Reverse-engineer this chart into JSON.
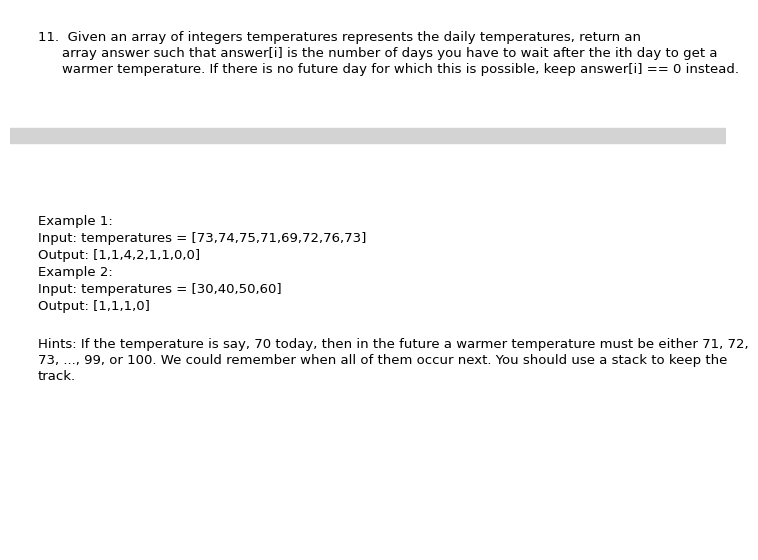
{
  "bg_color": "#ffffff",
  "banner_color": "#d3d3d3",
  "title_number": "11.",
  "title_line1": "Given an array of integers temperatures represents the daily temperatures, return an",
  "title_line2": "array answer such that answer[i] is the number of days you have to wait after the ith day to get a",
  "title_line3": "warmer temperature. If there is no future day for which this is possible, keep answer[i] == 0 instead.",
  "example1_label": "Example 1:",
  "example1_input": "Input: temperatures = [73,74,75,71,69,72,76,73]",
  "example1_output": "Output: [1,1,4,2,1,1,0,0]",
  "example2_label": "Example 2:",
  "example2_input": "Input: temperatures = [30,40,50,60]",
  "example2_output": "Output: [1,1,1,0]",
  "hints_line1": "Hints: If the temperature is say, 70 today, then in the future a warmer temperature must be either 71, 72,",
  "hints_line2": "73, ..., 99, or 100. We could remember when all of them occur next. You should use a stack to keep the",
  "hints_line3": "track.",
  "text_color": "#000000",
  "font_size": 9.5
}
